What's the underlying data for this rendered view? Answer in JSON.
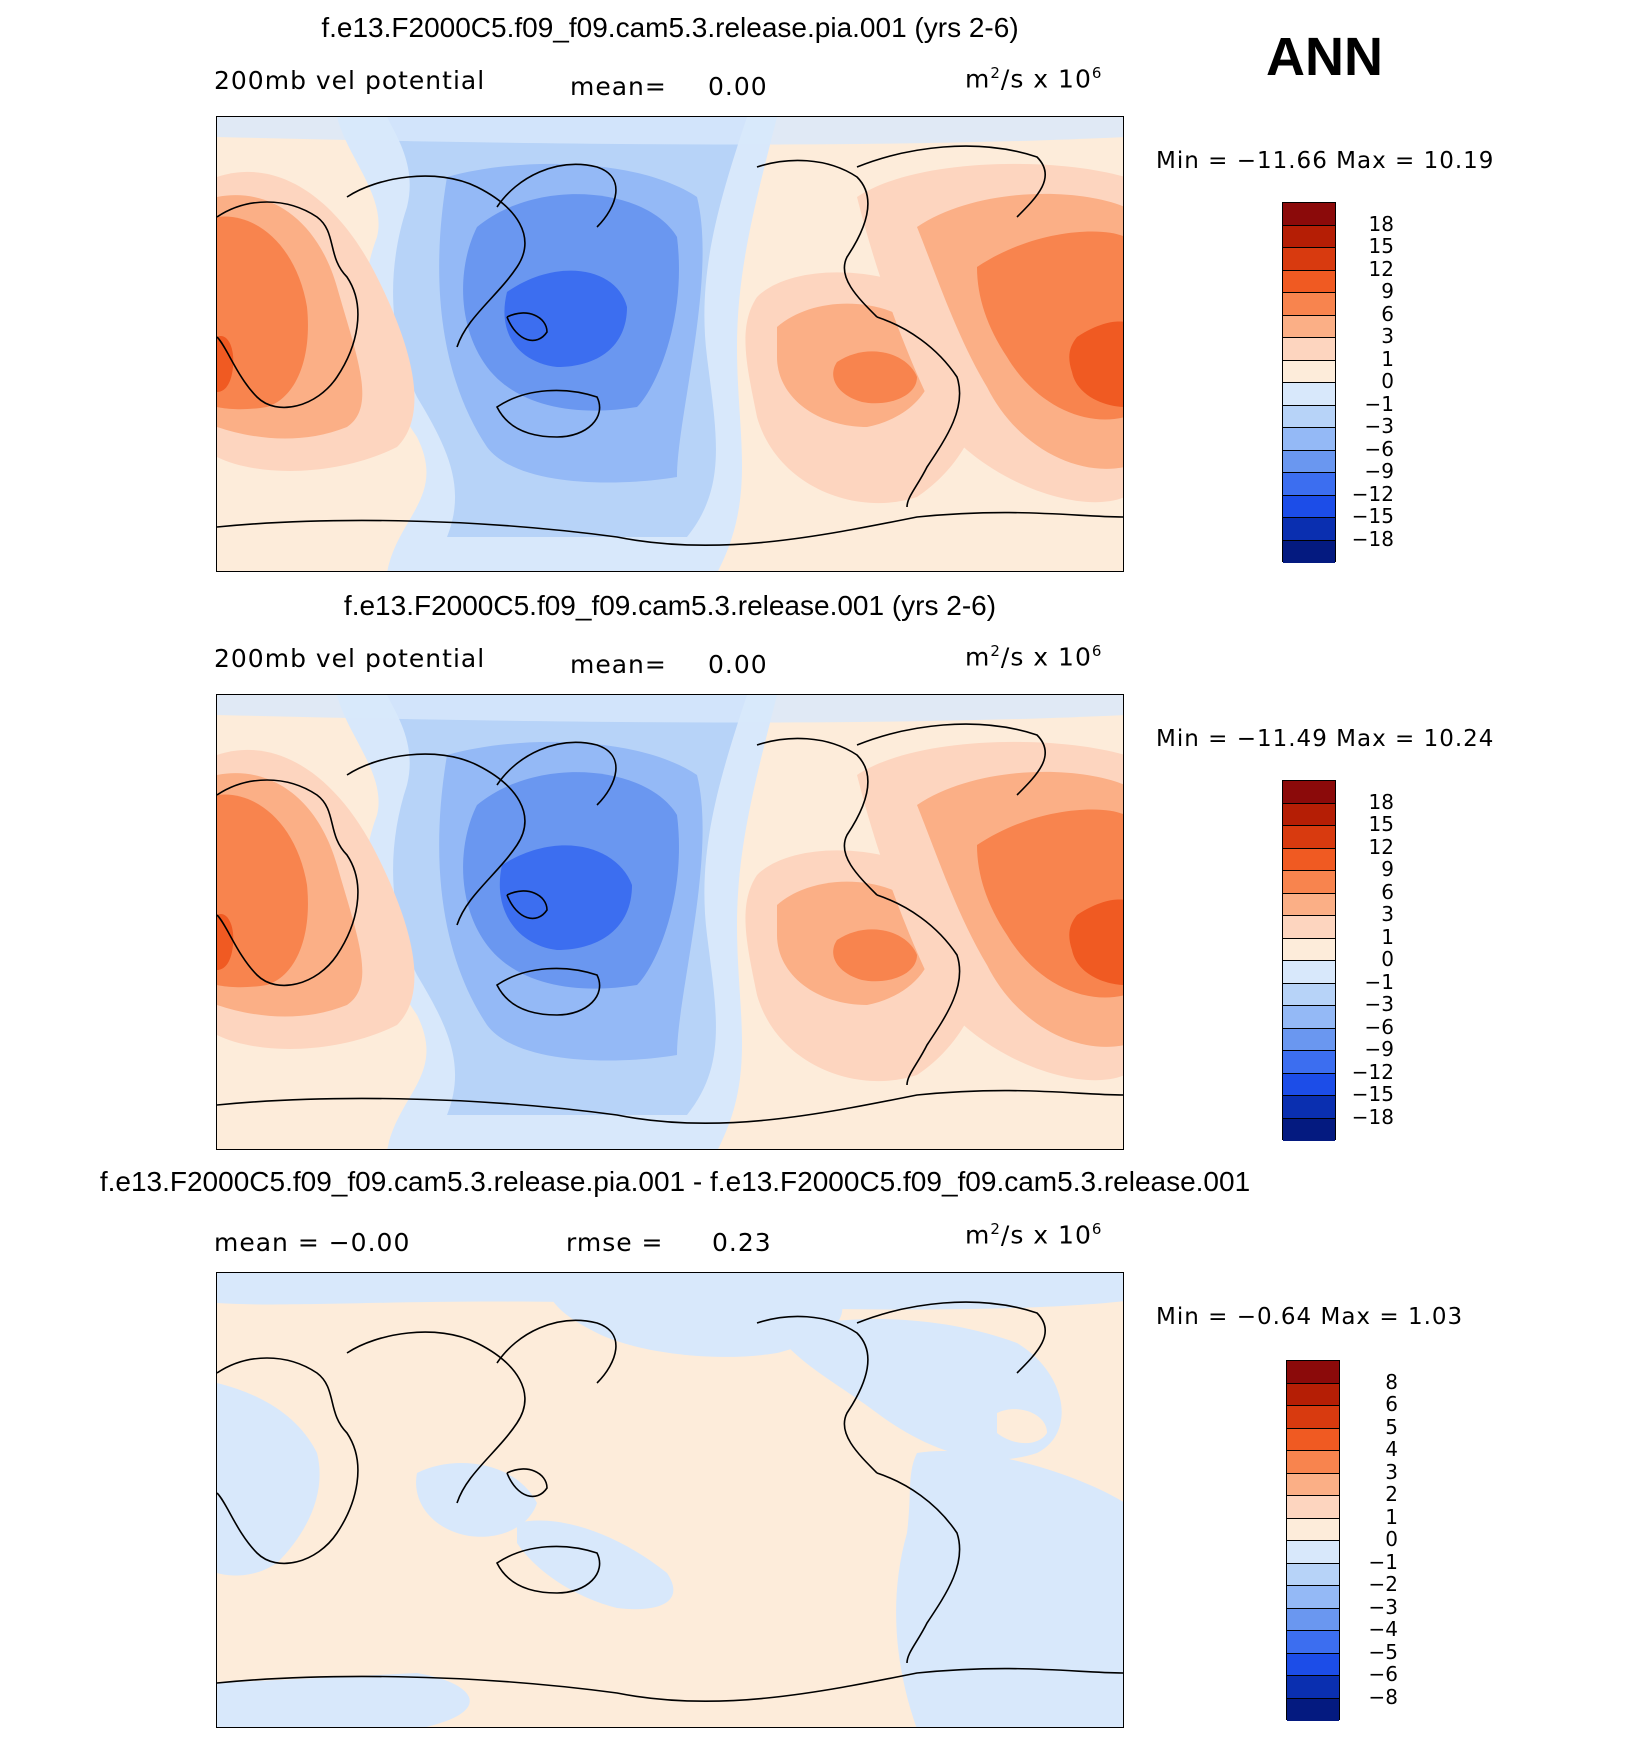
{
  "ann_label": "ANN",
  "panels": [
    {
      "title": "f.e13.F2000C5.f09_f09.cam5.3.release.pia.001 (yrs 2-6)",
      "left_label": "200mb  vel  potential",
      "mid_label": "mean=",
      "mid_value": "0.00",
      "units": "m",
      "units_sup": "2",
      "units_rest": "/s  x  10",
      "units_exp": "6",
      "stats": "Min  =  −11.66  Max  =     10.19",
      "colorbar_labels": [
        "18",
        "15",
        "12",
        "9",
        "6",
        "3",
        "1",
        "0",
        "−1",
        "−3",
        "−6",
        "−9",
        "−12",
        "−15",
        "−18"
      ]
    },
    {
      "title": "f.e13.F2000C5.f09_f09.cam5.3.release.001 (yrs 2-6)",
      "left_label": "200mb  vel  potential",
      "mid_label": "mean=",
      "mid_value": "0.00",
      "units": "m",
      "units_sup": "2",
      "units_rest": "/s  x  10",
      "units_exp": "6",
      "stats": "Min  =  −11.49  Max  =     10.24",
      "colorbar_labels": [
        "18",
        "15",
        "12",
        "9",
        "6",
        "3",
        "1",
        "0",
        "−1",
        "−3",
        "−6",
        "−9",
        "−12",
        "−15",
        "−18"
      ]
    },
    {
      "title": "f.e13.F2000C5.f09_f09.cam5.3.release.pia.001 - f.e13.F2000C5.f09_f09.cam5.3.release.001",
      "left_label": "mean  =    −0.00",
      "mid_label": "rmse  =",
      "mid_value": "0.23",
      "units": "m",
      "units_sup": "2",
      "units_rest": "/s  x  10",
      "units_exp": "6",
      "stats": "Min  =    −0.64  Max  =     1.03",
      "colorbar_labels": [
        "8",
        "6",
        "5",
        "4",
        "3",
        "2",
        "1",
        "0",
        "−1",
        "−2",
        "−3",
        "−4",
        "−5",
        "−6",
        "−8"
      ]
    }
  ],
  "colors": {
    "cbar": [
      "#8b0a0a",
      "#b51e05",
      "#d83a0f",
      "#f05a22",
      "#f8844e",
      "#fbaf86",
      "#fdd5bf",
      "#fdecda",
      "#d8e8fb",
      "#b7d3f8",
      "#94b9f6",
      "#6a97f0",
      "#3c6ef0",
      "#1c4de8",
      "#0a2fb0",
      "#041a80"
    ],
    "ocean_bg": "#d8e8fb",
    "pale_orange": "#fdecda"
  }
}
